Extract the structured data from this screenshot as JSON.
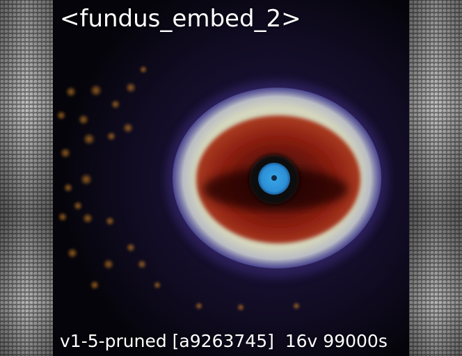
{
  "image": {
    "top_caption": "<fundus_embed_2>",
    "bottom_caption": "v1-5-pruned [a9263745]  16v 99000s",
    "colors": {
      "background": "#05040a",
      "ring_outer": "#d9dcc8",
      "iris_red": "#8a1d10",
      "pupil_blue": "#2c8fd6",
      "glow_violet": "#3a2a78",
      "spots_orange": "#b8751e"
    }
  }
}
